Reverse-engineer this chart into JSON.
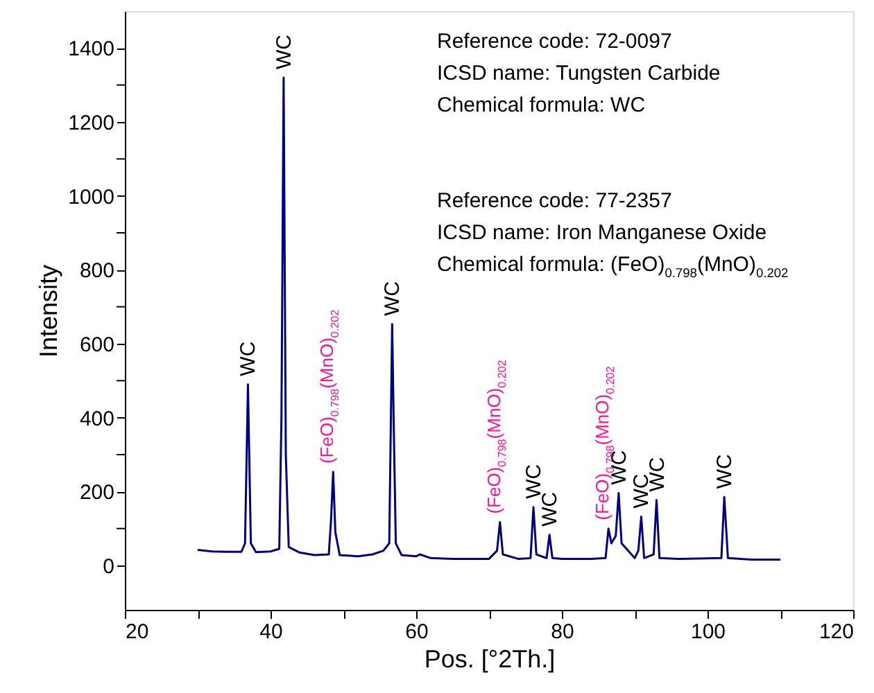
{
  "chart_data": {
    "type": "line",
    "xlabel": "Pos. [°2Th.]",
    "ylabel": "Intensity",
    "xlim": [
      20,
      120
    ],
    "ylim": [
      -120,
      1500
    ],
    "xticks": [
      20,
      {
        "value": 30,
        "label": null
      },
      40,
      {
        "value": 50,
        "label": null
      },
      60,
      {
        "value": 70,
        "label": null
      },
      80,
      {
        "value": 90,
        "label": null
      },
      100,
      {
        "value": 110,
        "label": null
      },
      120
    ],
    "yticks": [
      0,
      {
        "value": 100,
        "label": null
      },
      200,
      {
        "value": 300,
        "label": null
      },
      400,
      {
        "value": 500,
        "label": null
      },
      600,
      {
        "value": 700,
        "label": null
      },
      800,
      {
        "value": 900,
        "label": null
      },
      1000,
      {
        "value": 1100,
        "label": null
      },
      1200,
      {
        "value": 1300,
        "label": null
      },
      1400
    ],
    "grid": false,
    "marker": "none",
    "line_style": "solid",
    "series": [
      {
        "color": "#000080",
        "x": [
          30,
          32,
          34,
          36,
          36.5,
          36.9,
          37.3,
          38,
          40,
          41.2,
          41.5,
          41.8,
          42.1,
          42.5,
          44,
          46,
          48,
          48.3,
          48.6,
          48.9,
          49.5,
          52,
          54,
          55.5,
          56.3,
          56.7,
          56.9,
          57.2,
          58,
          60,
          60.5,
          62,
          65,
          70,
          71.1,
          71.5,
          71.9,
          74,
          75.7,
          76.1,
          76.5,
          77.9,
          78.3,
          78.7,
          80,
          84,
          86,
          86.4,
          86.8,
          87.4,
          87.8,
          88.2,
          90,
          90.5,
          90.9,
          91.3,
          92.6,
          93,
          93.4,
          96,
          101.9,
          102.3,
          102.5,
          102.8,
          106,
          110
        ],
        "values": [
          42,
          38,
          37,
          37,
          60,
          490,
          60,
          36,
          38,
          45,
          400,
          1320,
          300,
          50,
          35,
          28,
          30,
          120,
          253,
          90,
          28,
          25,
          30,
          40,
          60,
          653,
          400,
          60,
          28,
          25,
          30,
          20,
          18,
          18,
          40,
          117,
          30,
          18,
          20,
          158,
          30,
          20,
          83,
          20,
          18,
          18,
          20,
          100,
          60,
          80,
          196,
          60,
          20,
          40,
          132,
          20,
          30,
          177,
          20,
          18,
          20,
          185,
          120,
          20,
          16,
          16
        ]
      }
    ],
    "annotations": [
      {
        "text": "WC",
        "x": 36.9,
        "y": 490
      },
      {
        "text": "WC",
        "x": 41.8,
        "y": 1320
      },
      {
        "text": "(FeO)$_{0.798}$(MnO)$_{0.202}$",
        "x": 48.6,
        "y": 253
      },
      {
        "text": "WC",
        "x": 56.7,
        "y": 653
      },
      {
        "text": "(FeO)$_{0.798}$(MnO)$_{0.202}$",
        "x": 71.5,
        "y": 117
      },
      {
        "text": "WC",
        "x": 76.1,
        "y": 158
      },
      {
        "text": "WC",
        "x": 78.3,
        "y": 83
      },
      {
        "text": "(FeO)$_{0.798}$(MnO)$_{0.202}$",
        "x": 86.4,
        "y": 100
      },
      {
        "text": "WC",
        "x": 87.8,
        "y": 196
      },
      {
        "text": "WC",
        "x": 90.9,
        "y": 132
      },
      {
        "text": "WC",
        "x": 93,
        "y": 177
      },
      {
        "text": "WC",
        "x": 102.3,
        "y": 185
      },
      "Reference code: 72-0097",
      "ICSD name: Tungsten Carbide",
      "Chemical formula: WC",
      "Reference code: 77-2357",
      "ICSD name: Iron Manganese Oxide",
      "Chemical formula: (FeO)$_{0.798}$(MnO)$_{0.202}$"
    ]
  }
}
